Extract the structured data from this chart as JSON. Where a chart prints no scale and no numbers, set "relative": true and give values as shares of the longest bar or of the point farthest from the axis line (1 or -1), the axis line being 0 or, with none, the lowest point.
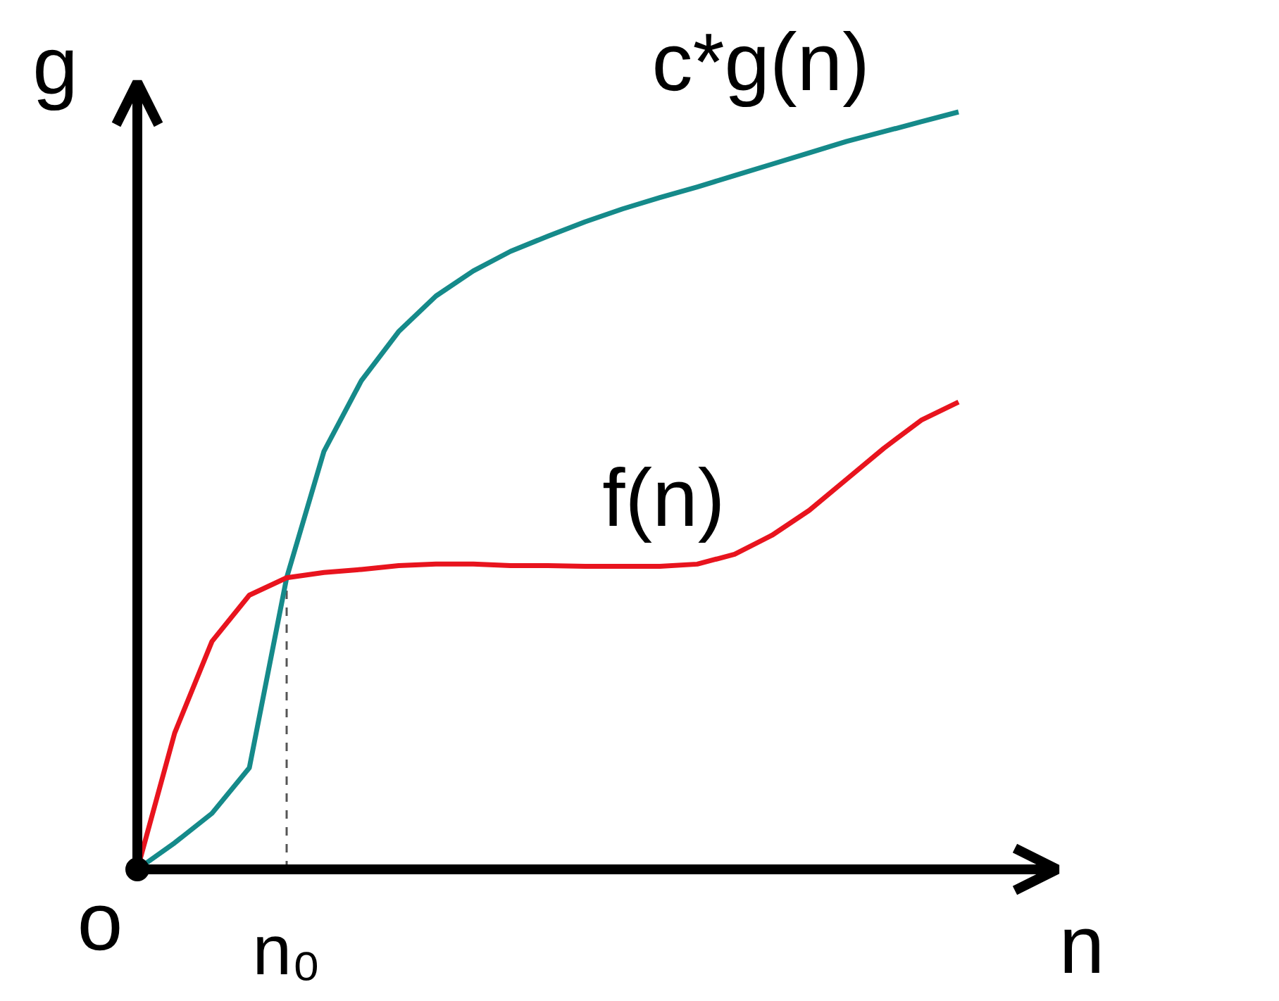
{
  "chart_data": {
    "type": "line",
    "relative": true,
    "xlabel": "n",
    "ylabel": "g",
    "tick_labels": false,
    "categories": [
      null,
      null,
      null,
      null,
      null,
      null,
      null,
      null,
      null,
      null,
      null,
      null,
      null,
      null,
      null,
      null,
      null,
      null,
      null,
      null,
      null,
      null,
      null
    ],
    "series": [
      {
        "name": "c*g(n)",
        "color": "#158a8a",
        "values": [
          0,
          0.035,
          0.074,
          0.134,
          0.385,
          0.552,
          0.645,
          0.71,
          0.757,
          0.79,
          0.816,
          0.836,
          0.855,
          0.872,
          0.887,
          0.901,
          0.916,
          0.931,
          0.946,
          0.961,
          0.974,
          0.987,
          1
        ]
      },
      {
        "name": "f(n)",
        "color": "#e8141e",
        "values": [
          0,
          0.18,
          0.301,
          0.362,
          0.385,
          0.392,
          0.396,
          0.401,
          0.403,
          0.403,
          0.401,
          0.401,
          0.4,
          0.4,
          0.4,
          0.403,
          0.416,
          0.441,
          0.474,
          0.515,
          0.556,
          0.593,
          0.617
        ]
      }
    ],
    "annotations": [
      "o",
      "n₀"
    ]
  }
}
